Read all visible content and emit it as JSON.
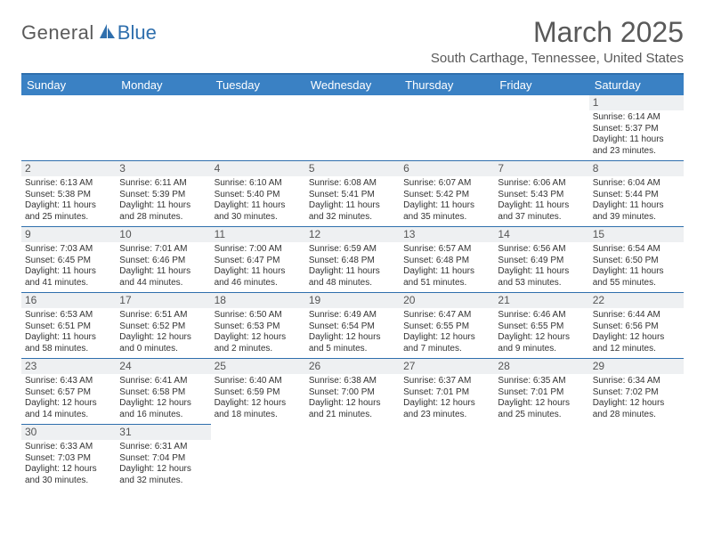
{
  "logo": {
    "text1": "General",
    "text2": "Blue"
  },
  "title": "March 2025",
  "location": "South Carthage, Tennessee, United States",
  "header_bg": "#3a81c4",
  "border_color": "#2f6fad",
  "days": [
    "Sunday",
    "Monday",
    "Tuesday",
    "Wednesday",
    "Thursday",
    "Friday",
    "Saturday"
  ],
  "weeks": [
    [
      null,
      null,
      null,
      null,
      null,
      null,
      {
        "n": "1",
        "sr": "Sunrise: 6:14 AM",
        "ss": "Sunset: 5:37 PM",
        "d1": "Daylight: 11 hours",
        "d2": "and 23 minutes."
      }
    ],
    [
      {
        "n": "2",
        "sr": "Sunrise: 6:13 AM",
        "ss": "Sunset: 5:38 PM",
        "d1": "Daylight: 11 hours",
        "d2": "and 25 minutes."
      },
      {
        "n": "3",
        "sr": "Sunrise: 6:11 AM",
        "ss": "Sunset: 5:39 PM",
        "d1": "Daylight: 11 hours",
        "d2": "and 28 minutes."
      },
      {
        "n": "4",
        "sr": "Sunrise: 6:10 AM",
        "ss": "Sunset: 5:40 PM",
        "d1": "Daylight: 11 hours",
        "d2": "and 30 minutes."
      },
      {
        "n": "5",
        "sr": "Sunrise: 6:08 AM",
        "ss": "Sunset: 5:41 PM",
        "d1": "Daylight: 11 hours",
        "d2": "and 32 minutes."
      },
      {
        "n": "6",
        "sr": "Sunrise: 6:07 AM",
        "ss": "Sunset: 5:42 PM",
        "d1": "Daylight: 11 hours",
        "d2": "and 35 minutes."
      },
      {
        "n": "7",
        "sr": "Sunrise: 6:06 AM",
        "ss": "Sunset: 5:43 PM",
        "d1": "Daylight: 11 hours",
        "d2": "and 37 minutes."
      },
      {
        "n": "8",
        "sr": "Sunrise: 6:04 AM",
        "ss": "Sunset: 5:44 PM",
        "d1": "Daylight: 11 hours",
        "d2": "and 39 minutes."
      }
    ],
    [
      {
        "n": "9",
        "sr": "Sunrise: 7:03 AM",
        "ss": "Sunset: 6:45 PM",
        "d1": "Daylight: 11 hours",
        "d2": "and 41 minutes."
      },
      {
        "n": "10",
        "sr": "Sunrise: 7:01 AM",
        "ss": "Sunset: 6:46 PM",
        "d1": "Daylight: 11 hours",
        "d2": "and 44 minutes."
      },
      {
        "n": "11",
        "sr": "Sunrise: 7:00 AM",
        "ss": "Sunset: 6:47 PM",
        "d1": "Daylight: 11 hours",
        "d2": "and 46 minutes."
      },
      {
        "n": "12",
        "sr": "Sunrise: 6:59 AM",
        "ss": "Sunset: 6:48 PM",
        "d1": "Daylight: 11 hours",
        "d2": "and 48 minutes."
      },
      {
        "n": "13",
        "sr": "Sunrise: 6:57 AM",
        "ss": "Sunset: 6:48 PM",
        "d1": "Daylight: 11 hours",
        "d2": "and 51 minutes."
      },
      {
        "n": "14",
        "sr": "Sunrise: 6:56 AM",
        "ss": "Sunset: 6:49 PM",
        "d1": "Daylight: 11 hours",
        "d2": "and 53 minutes."
      },
      {
        "n": "15",
        "sr": "Sunrise: 6:54 AM",
        "ss": "Sunset: 6:50 PM",
        "d1": "Daylight: 11 hours",
        "d2": "and 55 minutes."
      }
    ],
    [
      {
        "n": "16",
        "sr": "Sunrise: 6:53 AM",
        "ss": "Sunset: 6:51 PM",
        "d1": "Daylight: 11 hours",
        "d2": "and 58 minutes."
      },
      {
        "n": "17",
        "sr": "Sunrise: 6:51 AM",
        "ss": "Sunset: 6:52 PM",
        "d1": "Daylight: 12 hours",
        "d2": "and 0 minutes."
      },
      {
        "n": "18",
        "sr": "Sunrise: 6:50 AM",
        "ss": "Sunset: 6:53 PM",
        "d1": "Daylight: 12 hours",
        "d2": "and 2 minutes."
      },
      {
        "n": "19",
        "sr": "Sunrise: 6:49 AM",
        "ss": "Sunset: 6:54 PM",
        "d1": "Daylight: 12 hours",
        "d2": "and 5 minutes."
      },
      {
        "n": "20",
        "sr": "Sunrise: 6:47 AM",
        "ss": "Sunset: 6:55 PM",
        "d1": "Daylight: 12 hours",
        "d2": "and 7 minutes."
      },
      {
        "n": "21",
        "sr": "Sunrise: 6:46 AM",
        "ss": "Sunset: 6:55 PM",
        "d1": "Daylight: 12 hours",
        "d2": "and 9 minutes."
      },
      {
        "n": "22",
        "sr": "Sunrise: 6:44 AM",
        "ss": "Sunset: 6:56 PM",
        "d1": "Daylight: 12 hours",
        "d2": "and 12 minutes."
      }
    ],
    [
      {
        "n": "23",
        "sr": "Sunrise: 6:43 AM",
        "ss": "Sunset: 6:57 PM",
        "d1": "Daylight: 12 hours",
        "d2": "and 14 minutes."
      },
      {
        "n": "24",
        "sr": "Sunrise: 6:41 AM",
        "ss": "Sunset: 6:58 PM",
        "d1": "Daylight: 12 hours",
        "d2": "and 16 minutes."
      },
      {
        "n": "25",
        "sr": "Sunrise: 6:40 AM",
        "ss": "Sunset: 6:59 PM",
        "d1": "Daylight: 12 hours",
        "d2": "and 18 minutes."
      },
      {
        "n": "26",
        "sr": "Sunrise: 6:38 AM",
        "ss": "Sunset: 7:00 PM",
        "d1": "Daylight: 12 hours",
        "d2": "and 21 minutes."
      },
      {
        "n": "27",
        "sr": "Sunrise: 6:37 AM",
        "ss": "Sunset: 7:01 PM",
        "d1": "Daylight: 12 hours",
        "d2": "and 23 minutes."
      },
      {
        "n": "28",
        "sr": "Sunrise: 6:35 AM",
        "ss": "Sunset: 7:01 PM",
        "d1": "Daylight: 12 hours",
        "d2": "and 25 minutes."
      },
      {
        "n": "29",
        "sr": "Sunrise: 6:34 AM",
        "ss": "Sunset: 7:02 PM",
        "d1": "Daylight: 12 hours",
        "d2": "and 28 minutes."
      }
    ],
    [
      {
        "n": "30",
        "sr": "Sunrise: 6:33 AM",
        "ss": "Sunset: 7:03 PM",
        "d1": "Daylight: 12 hours",
        "d2": "and 30 minutes."
      },
      {
        "n": "31",
        "sr": "Sunrise: 6:31 AM",
        "ss": "Sunset: 7:04 PM",
        "d1": "Daylight: 12 hours",
        "d2": "and 32 minutes."
      },
      null,
      null,
      null,
      null,
      null
    ]
  ]
}
